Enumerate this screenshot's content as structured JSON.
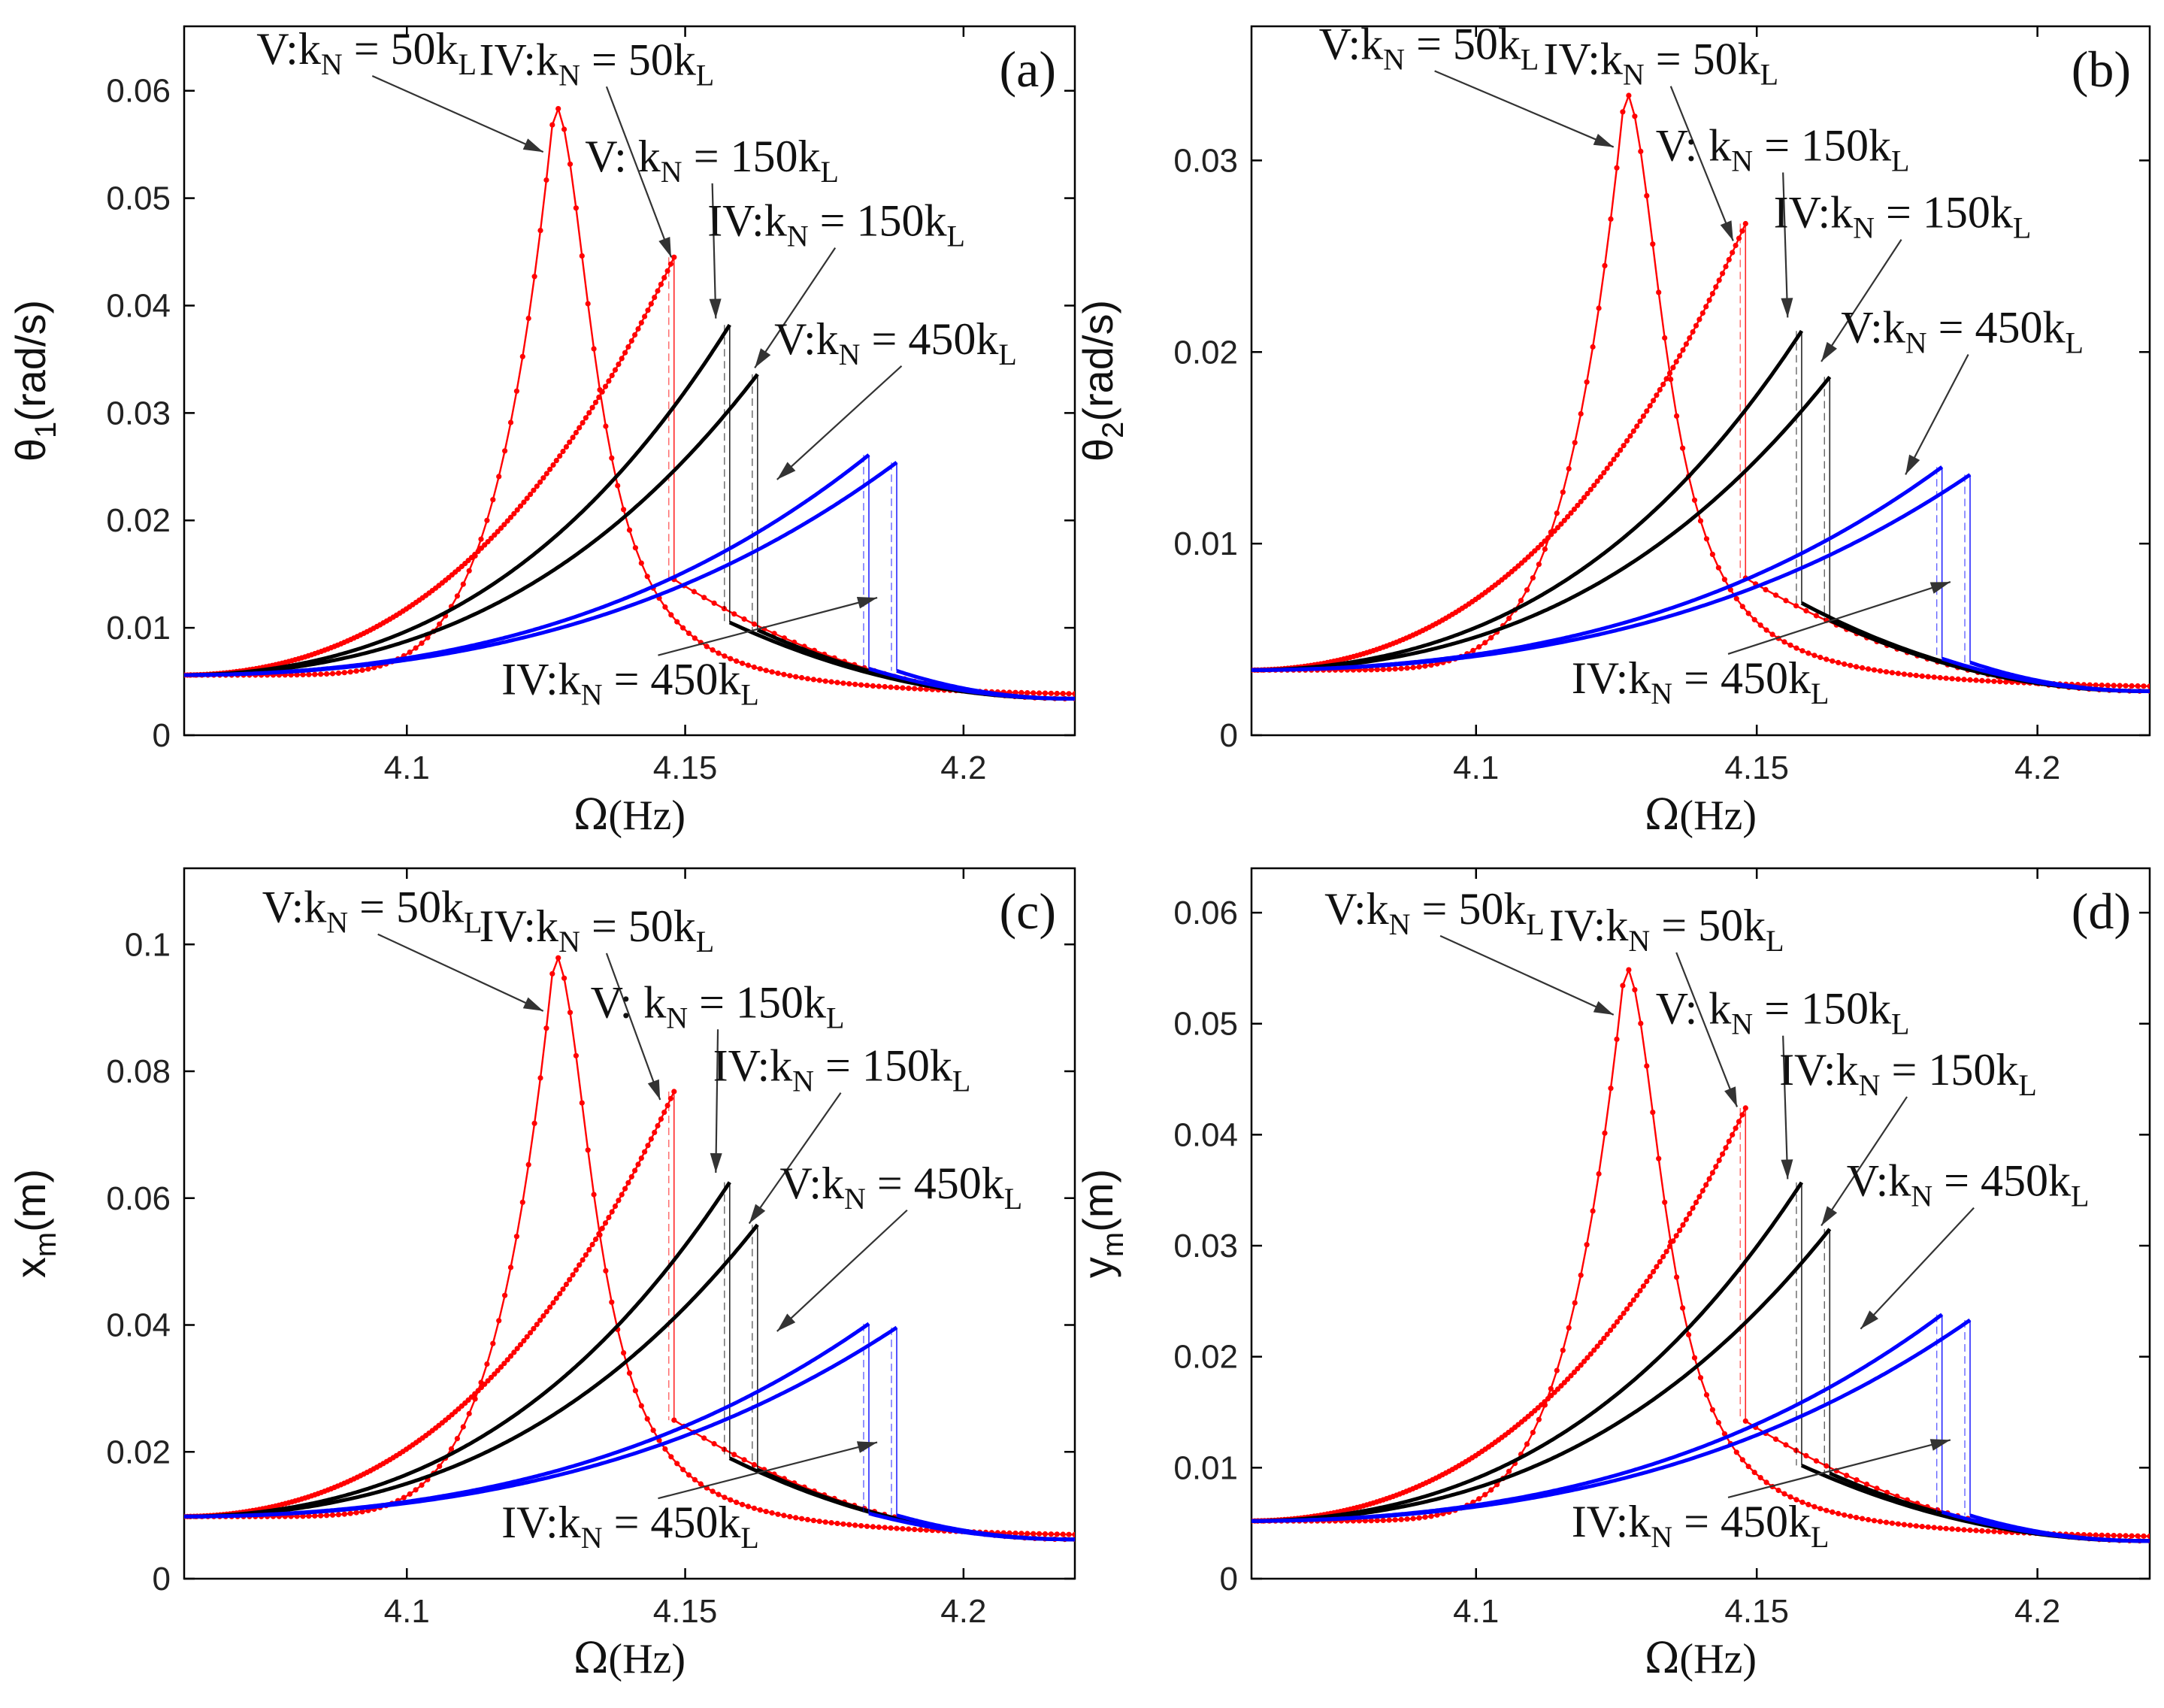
{
  "colors": {
    "series_V": "#ff0000",
    "series_IV_150": "#000000",
    "series_450": "#0000ff",
    "arrow": "#333333"
  },
  "chart_data": [
    {
      "panel": "(a)",
      "type": "line",
      "xlabel": {
        "base": "Ω",
        "unit": "(Hz)"
      },
      "ylabel": {
        "base": "θ",
        "sub": "1",
        "unit": "(rad/s)"
      },
      "xlim": [
        4.06,
        4.22
      ],
      "ylim": [
        0,
        0.066
      ],
      "xticks": [
        4.1,
        4.15,
        4.2
      ],
      "xtick_labels": [
        "4.1",
        "4.15",
        "4.2"
      ],
      "yticks": [
        0,
        0.01,
        0.02,
        0.03,
        0.04,
        0.05,
        0.06
      ],
      "ytick_labels": [
        "0",
        "0.01",
        "0.02",
        "0.03",
        "0.04",
        "0.05",
        "0.06"
      ],
      "base": 0.0056,
      "tail": 0.0034,
      "series": [
        {
          "name": "V: kN = 50kL",
          "color": "#ff0000",
          "style": "dotted",
          "peak_x": 4.1265,
          "peak_y": 0.0587,
          "shape": "peak",
          "jump_to": 0.014
        },
        {
          "name": "IV: kN = 50kL",
          "color": "#ff0000",
          "style": "dotted",
          "peak_x": 4.148,
          "peak_y": 0.0445,
          "shape": "ramp",
          "jump_to": 0.0145
        },
        {
          "name": "V: kN = 150kL",
          "color": "#000000",
          "style": "solid",
          "peak_x": 4.158,
          "peak_y": 0.0382,
          "shape": "ramp",
          "jump_to": 0.0105
        },
        {
          "name": "IV: kN = 150kL",
          "color": "#000000",
          "style": "solid",
          "peak_x": 4.163,
          "peak_y": 0.0336,
          "shape": "ramp",
          "jump_to": 0.0098
        },
        {
          "name": "V: kN = 450kL",
          "color": "#0000ff",
          "style": "solid",
          "peak_x": 4.183,
          "peak_y": 0.0261,
          "shape": "ramp",
          "jump_to": 0.0062
        },
        {
          "name": "IV: kN = 450kL",
          "color": "#0000ff",
          "style": "solid",
          "peak_x": 4.188,
          "peak_y": 0.0254,
          "shape": "ramp",
          "jump_to": 0.006
        }
      ],
      "annotations": [
        {
          "roman": "V",
          "sep": ":",
          "value": "50",
          "text_x": 4.073,
          "text_y": 0.0625,
          "arrow_to": [
            4.1245,
            0.0543
          ]
        },
        {
          "roman": "IV",
          "sep": ":",
          "value": "50",
          "text_x": 4.113,
          "text_y": 0.0615,
          "arrow_to": [
            4.1475,
            0.0445
          ]
        },
        {
          "roman": "V",
          "sep": ": ",
          "value": "150",
          "text_x": 4.132,
          "text_y": 0.0525,
          "arrow_to": [
            4.1555,
            0.0388
          ]
        },
        {
          "roman": "IV",
          "sep": ":",
          "value": "150",
          "text_x": 4.154,
          "text_y": 0.0465,
          "arrow_to": [
            4.1625,
            0.0342
          ]
        },
        {
          "roman": "V",
          "sep": ":",
          "value": "450",
          "text_x": 4.166,
          "text_y": 0.0355,
          "arrow_to": [
            4.1665,
            0.0238
          ]
        },
        {
          "roman": "IV",
          "sep": ":",
          "value": "450",
          "text_x": 4.117,
          "text_y": 0.0038,
          "arrow_to": [
            4.1845,
            0.0128
          ]
        }
      ]
    },
    {
      "panel": "(b)",
      "type": "line",
      "xlabel": {
        "base": "Ω",
        "unit": "(Hz)"
      },
      "ylabel": {
        "base": "θ",
        "sub": "2",
        "unit": "(rad/s)"
      },
      "xlim": [
        4.06,
        4.22
      ],
      "ylim": [
        0,
        0.037
      ],
      "xticks": [
        4.1,
        4.15,
        4.2
      ],
      "xtick_labels": [
        "4.1",
        "4.15",
        "4.2"
      ],
      "yticks": [
        0,
        0.01,
        0.02,
        0.03
      ],
      "ytick_labels": [
        "0",
        "0.01",
        "0.02",
        "0.03"
      ],
      "base": 0.0034,
      "tail": 0.0023,
      "series": [
        {
          "name": "V: kN = 50kL",
          "color": "#ff0000",
          "style": "dotted",
          "peak_x": 4.1265,
          "peak_y": 0.0336,
          "shape": "peak",
          "jump_to": 0.008
        },
        {
          "name": "IV: kN = 50kL",
          "color": "#ff0000",
          "style": "dotted",
          "peak_x": 4.148,
          "peak_y": 0.0267,
          "shape": "ramp",
          "jump_to": 0.0082
        },
        {
          "name": "V: kN = 150kL",
          "color": "#000000",
          "style": "solid",
          "peak_x": 4.158,
          "peak_y": 0.0211,
          "shape": "ramp",
          "jump_to": 0.0069
        },
        {
          "name": "IV: kN = 150kL",
          "color": "#000000",
          "style": "solid",
          "peak_x": 4.163,
          "peak_y": 0.0187,
          "shape": "ramp",
          "jump_to": 0.006
        },
        {
          "name": "V: kN = 450kL",
          "color": "#0000ff",
          "style": "solid",
          "peak_x": 4.183,
          "peak_y": 0.014,
          "shape": "ramp",
          "jump_to": 0.004
        },
        {
          "name": "IV: kN = 450kL",
          "color": "#0000ff",
          "style": "solid",
          "peak_x": 4.188,
          "peak_y": 0.0136,
          "shape": "ramp",
          "jump_to": 0.0038
        }
      ],
      "annotations": [
        {
          "roman": "V",
          "sep": ":",
          "value": "50",
          "text_x": 4.072,
          "text_y": 0.0353,
          "arrow_to": [
            4.1245,
            0.0307
          ]
        },
        {
          "roman": "IV",
          "sep": ":",
          "value": "50",
          "text_x": 4.112,
          "text_y": 0.0345,
          "arrow_to": [
            4.1458,
            0.0258
          ]
        },
        {
          "roman": "V",
          "sep": ": ",
          "value": "150",
          "text_x": 4.132,
          "text_y": 0.03,
          "arrow_to": [
            4.1555,
            0.0218
          ]
        },
        {
          "roman": "IV",
          "sep": ":",
          "value": "150",
          "text_x": 4.153,
          "text_y": 0.0265,
          "arrow_to": [
            4.1615,
            0.0195
          ]
        },
        {
          "roman": "V",
          "sep": ":",
          "value": "450",
          "text_x": 4.165,
          "text_y": 0.0205,
          "arrow_to": [
            4.1765,
            0.0136
          ]
        },
        {
          "roman": "IV",
          "sep": ":",
          "value": "450",
          "text_x": 4.117,
          "text_y": 0.0022,
          "arrow_to": [
            4.1845,
            0.008
          ]
        }
      ]
    },
    {
      "panel": "(c)",
      "type": "line",
      "xlabel": {
        "base": "Ω",
        "unit": "(Hz)"
      },
      "ylabel": {
        "base": "x",
        "sub": "m",
        "unit": "(m)"
      },
      "xlim": [
        4.06,
        4.22
      ],
      "ylim": [
        0,
        0.112
      ],
      "xticks": [
        4.1,
        4.15,
        4.2
      ],
      "xtick_labels": [
        "4.1",
        "4.15",
        "4.2"
      ],
      "yticks": [
        0,
        0.02,
        0.04,
        0.06,
        0.08,
        0.1
      ],
      "ytick_labels": [
        "0",
        "0.02",
        "0.04",
        "0.06",
        "0.08",
        "0.1"
      ],
      "base": 0.0098,
      "tail": 0.0062,
      "series": [
        {
          "name": "V: kN = 50kL",
          "color": "#ff0000",
          "style": "dotted",
          "peak_x": 4.1265,
          "peak_y": 0.0985,
          "shape": "peak",
          "jump_to": 0.0245
        },
        {
          "name": "IV: kN = 50kL",
          "color": "#ff0000",
          "style": "dotted",
          "peak_x": 4.148,
          "peak_y": 0.0768,
          "shape": "ramp",
          "jump_to": 0.025
        },
        {
          "name": "V: kN = 150kL",
          "color": "#000000",
          "style": "solid",
          "peak_x": 4.158,
          "peak_y": 0.0625,
          "shape": "ramp",
          "jump_to": 0.019
        },
        {
          "name": "IV: kN = 150kL",
          "color": "#000000",
          "style": "solid",
          "peak_x": 4.163,
          "peak_y": 0.0558,
          "shape": "ramp",
          "jump_to": 0.0172
        },
        {
          "name": "V: kN = 450kL",
          "color": "#0000ff",
          "style": "solid",
          "peak_x": 4.183,
          "peak_y": 0.0402,
          "shape": "ramp",
          "jump_to": 0.0103
        },
        {
          "name": "IV: kN = 450kL",
          "color": "#0000ff",
          "style": "solid",
          "peak_x": 4.188,
          "peak_y": 0.0396,
          "shape": "ramp",
          "jump_to": 0.01
        }
      ],
      "annotations": [
        {
          "roman": "V",
          "sep": ":",
          "value": "50",
          "text_x": 4.074,
          "text_y": 0.1035,
          "arrow_to": [
            4.1245,
            0.0895
          ]
        },
        {
          "roman": "IV",
          "sep": ":",
          "value": "50",
          "text_x": 4.113,
          "text_y": 0.1005,
          "arrow_to": [
            4.1455,
            0.0755
          ]
        },
        {
          "roman": "V",
          "sep": ": ",
          "value": "150",
          "text_x": 4.133,
          "text_y": 0.0885,
          "arrow_to": [
            4.1555,
            0.064
          ]
        },
        {
          "roman": "IV",
          "sep": ":",
          "value": "150",
          "text_x": 4.155,
          "text_y": 0.0785,
          "arrow_to": [
            4.1615,
            0.056
          ]
        },
        {
          "roman": "V",
          "sep": ":",
          "value": "450",
          "text_x": 4.167,
          "text_y": 0.06,
          "arrow_to": [
            4.1665,
            0.039
          ]
        },
        {
          "roman": "IV",
          "sep": ":",
          "value": "450",
          "text_x": 4.117,
          "text_y": 0.0065,
          "arrow_to": [
            4.1845,
            0.0215
          ]
        }
      ]
    },
    {
      "panel": "(d)",
      "type": "line",
      "xlabel": {
        "base": "Ω",
        "unit": "(Hz)"
      },
      "ylabel": {
        "base": "y",
        "sub": "m",
        "unit": "(m)"
      },
      "xlim": [
        4.06,
        4.22
      ],
      "ylim": [
        0,
        0.064
      ],
      "xticks": [
        4.1,
        4.15,
        4.2
      ],
      "xtick_labels": [
        "4.1",
        "4.15",
        "4.2"
      ],
      "yticks": [
        0,
        0.01,
        0.02,
        0.03,
        0.04,
        0.05,
        0.06
      ],
      "ytick_labels": [
        "0",
        "0.01",
        "0.02",
        "0.03",
        "0.04",
        "0.05",
        "0.06"
      ],
      "base": 0.0052,
      "tail": 0.0034,
      "series": [
        {
          "name": "V: kN = 50kL",
          "color": "#ff0000",
          "style": "dotted",
          "peak_x": 4.1265,
          "peak_y": 0.0552,
          "shape": "peak",
          "jump_to": 0.0138
        },
        {
          "name": "IV: kN = 50kL",
          "color": "#ff0000",
          "style": "dotted",
          "peak_x": 4.148,
          "peak_y": 0.0424,
          "shape": "ramp",
          "jump_to": 0.0142
        },
        {
          "name": "V: kN = 150kL",
          "color": "#000000",
          "style": "solid",
          "peak_x": 4.158,
          "peak_y": 0.0357,
          "shape": "ramp",
          "jump_to": 0.0102
        },
        {
          "name": "IV: kN = 150kL",
          "color": "#000000",
          "style": "solid",
          "peak_x": 4.163,
          "peak_y": 0.0315,
          "shape": "ramp",
          "jump_to": 0.0095
        },
        {
          "name": "V: kN = 450kL",
          "color": "#0000ff",
          "style": "solid",
          "peak_x": 4.183,
          "peak_y": 0.0238,
          "shape": "ramp",
          "jump_to": 0.006
        },
        {
          "name": "IV: kN = 450kL",
          "color": "#0000ff",
          "style": "solid",
          "peak_x": 4.188,
          "peak_y": 0.0233,
          "shape": "ramp",
          "jump_to": 0.0057
        }
      ],
      "annotations": [
        {
          "roman": "V",
          "sep": ":",
          "value": "50",
          "text_x": 4.073,
          "text_y": 0.059,
          "arrow_to": [
            4.1245,
            0.0508
          ]
        },
        {
          "roman": "IV",
          "sep": ":",
          "value": "50",
          "text_x": 4.113,
          "text_y": 0.0575,
          "arrow_to": [
            4.1465,
            0.0425
          ]
        },
        {
          "roman": "V",
          "sep": ": ",
          "value": "150",
          "text_x": 4.132,
          "text_y": 0.05,
          "arrow_to": [
            4.1555,
            0.036
          ]
        },
        {
          "roman": "IV",
          "sep": ":",
          "value": "150",
          "text_x": 4.154,
          "text_y": 0.0445,
          "arrow_to": [
            4.1615,
            0.0318
          ]
        },
        {
          "roman": "V",
          "sep": ":",
          "value": "450",
          "text_x": 4.166,
          "text_y": 0.0345,
          "arrow_to": [
            4.1685,
            0.0225
          ]
        },
        {
          "roman": "IV",
          "sep": ":",
          "value": "450",
          "text_x": 4.117,
          "text_y": 0.0038,
          "arrow_to": [
            4.1845,
            0.0125
          ]
        }
      ]
    }
  ]
}
